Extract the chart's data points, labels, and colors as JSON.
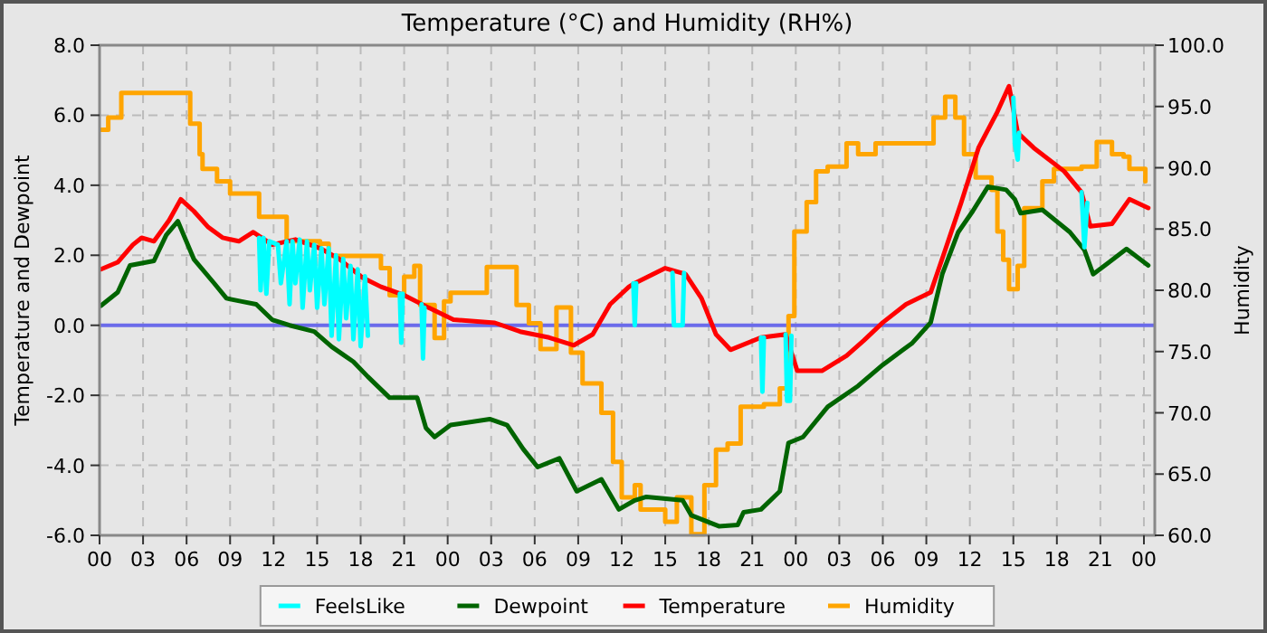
{
  "chart_data": {
    "type": "line",
    "title": "Temperature (°C) and Humidity (RH%)",
    "ylabel": "Temperature and Dewpoint",
    "y2label": "Humidity",
    "xlim": [
      0,
      72.75
    ],
    "xticks": [
      {
        "value": 0,
        "label": "00"
      },
      {
        "value": 3,
        "label": "03"
      },
      {
        "value": 6,
        "label": "06"
      },
      {
        "value": 9,
        "label": "09"
      },
      {
        "value": 12,
        "label": "12"
      },
      {
        "value": 15,
        "label": "15"
      },
      {
        "value": 18,
        "label": "18"
      },
      {
        "value": 21,
        "label": "21"
      },
      {
        "value": 24,
        "label": "00"
      },
      {
        "value": 27,
        "label": "03"
      },
      {
        "value": 30,
        "label": "06"
      },
      {
        "value": 33,
        "label": "09"
      },
      {
        "value": 36,
        "label": "12"
      },
      {
        "value": 39,
        "label": "15"
      },
      {
        "value": 42,
        "label": "18"
      },
      {
        "value": 45,
        "label": "21"
      },
      {
        "value": 48,
        "label": "00"
      },
      {
        "value": 51,
        "label": "03"
      },
      {
        "value": 54,
        "label": "06"
      },
      {
        "value": 57,
        "label": "09"
      },
      {
        "value": 60,
        "label": "12"
      },
      {
        "value": 63,
        "label": "15"
      },
      {
        "value": 66,
        "label": "18"
      },
      {
        "value": 69,
        "label": "21"
      },
      {
        "value": 72,
        "label": "00"
      }
    ],
    "ylim": [
      -6,
      8
    ],
    "yticks": [
      {
        "value": -6,
        "label": "-6.0"
      },
      {
        "value": -4,
        "label": "-4.0"
      },
      {
        "value": -2,
        "label": "-2.0"
      },
      {
        "value": 0,
        "label": "0.0"
      },
      {
        "value": 2,
        "label": "2.0"
      },
      {
        "value": 4,
        "label": "4.0"
      },
      {
        "value": 6,
        "label": "6.0"
      },
      {
        "value": 8,
        "label": "8.0"
      }
    ],
    "y2lim": [
      60,
      100
    ],
    "y2ticks": [
      {
        "value": 60,
        "label": "60.0"
      },
      {
        "value": 65,
        "label": "65.0"
      },
      {
        "value": 70,
        "label": "70.0"
      },
      {
        "value": 75,
        "label": "75.0"
      },
      {
        "value": 80,
        "label": "80.0"
      },
      {
        "value": 85,
        "label": "85.0"
      },
      {
        "value": 90,
        "label": "90.0"
      },
      {
        "value": 95,
        "label": "95.0"
      },
      {
        "value": 100,
        "label": "100.0"
      }
    ],
    "grid": true,
    "legend": "bottom",
    "marker": "none",
    "line_style": "solid",
    "ref_lines": [
      {
        "axis": "y",
        "value": 0,
        "color": "#6b6bea"
      }
    ],
    "series": [
      {
        "name": "FeelsLike",
        "color": "#00ffff",
        "type": "line",
        "x": [
          11.0,
          11.1,
          11.3,
          11.5,
          11.7,
          12.3,
          12.5,
          12.9,
          13.1,
          13.3,
          13.5,
          13.8,
          14.0,
          14.3,
          14.5,
          14.8,
          15.0,
          15.3,
          15.5,
          15.8,
          16.0,
          16.3,
          16.5,
          16.8,
          17.0,
          17.3,
          17.5,
          17.8,
          18.0,
          18.3,
          18.5,
          19.5,
          20.7,
          20.8,
          20.9,
          21.5,
          22.2,
          22.3,
          22.4,
          30,
          36.8,
          36.9,
          37.0,
          38,
          39.5,
          39.6,
          40.2,
          40.3,
          44,
          45.6,
          45.7,
          45.8,
          46.5,
          47.3,
          47.4,
          47.6,
          47.7,
          55,
          63.0,
          63.1,
          63.3,
          63.4,
          66,
          67.7,
          67.9,
          68.1
        ],
        "values": [
          2.5,
          1.0,
          2.5,
          0.9,
          2.4,
          2.3,
          1.2,
          2.4,
          0.6,
          2.4,
          1.2,
          2.45,
          0.5,
          2.4,
          1.0,
          2.3,
          0.5,
          2.2,
          0.6,
          2.2,
          -0.3,
          2.0,
          -0.4,
          1.9,
          0.2,
          1.7,
          -0.4,
          1.6,
          -0.6,
          1.4,
          -0.3,
          null,
          0.9,
          -0.5,
          0.9,
          null,
          0.6,
          -0.95,
          0.5,
          null,
          1.2,
          0.0,
          1.2,
          null,
          1.5,
          0.0,
          0.0,
          1.5,
          null,
          -0.35,
          -1.9,
          -0.35,
          null,
          -0.26,
          -2.16,
          -2.16,
          -0.3,
          null,
          6.5,
          5.2,
          4.73,
          5.5,
          null,
          3.8,
          2.23,
          3.5
        ]
      },
      {
        "name": "Dewpoint",
        "color": "#006400",
        "type": "line",
        "x": [
          0.1,
          1.25,
          2.1,
          3.75,
          4.6,
          5.4,
          6.5,
          7.9,
          8.75,
          9.8,
          10.8,
          11.9,
          13.1,
          14.8,
          16,
          16.9,
          17.5,
          18.5,
          20,
          21.9,
          22.5,
          23.1,
          24.2,
          26.9,
          28.1,
          29.2,
          30.2,
          31.7,
          32.9,
          34.6,
          35.8,
          36.9,
          37.7,
          40.2,
          40.8,
          42.7,
          44,
          44.4,
          45.6,
          46.9,
          47.5,
          48.5,
          50.2,
          52.3,
          54,
          55.4,
          56,
          57.3,
          58.1,
          59.2,
          60.2,
          61.25,
          62.5,
          63.1,
          63.5,
          65,
          66.9,
          67.9,
          68.5,
          69.6,
          70.8,
          72.3
        ],
        "values": [
          0.56,
          0.94,
          1.71,
          1.84,
          2.58,
          2.97,
          1.89,
          1.2,
          0.77,
          0.68,
          0.6,
          0.16,
          0,
          -0.18,
          -0.61,
          -0.87,
          -1.04,
          -1.47,
          -2.07,
          -2.07,
          -2.93,
          -3.19,
          -2.85,
          -2.68,
          -2.85,
          -3.53,
          -4.05,
          -3.8,
          -4.74,
          -4.4,
          -5.26,
          -5.0,
          -4.9,
          -5.0,
          -5.43,
          -5.74,
          -5.7,
          -5.34,
          -5.26,
          -4.74,
          -3.36,
          -3.19,
          -2.33,
          -1.73,
          -1.13,
          -0.7,
          -0.52,
          0.08,
          1.46,
          2.66,
          3.26,
          3.96,
          3.87,
          3.6,
          3.2,
          3.3,
          2.66,
          2.15,
          1.46,
          1.8,
          2.18,
          1.71
        ]
      },
      {
        "name": "Temperature",
        "color": "#ff0000",
        "type": "line",
        "x": [
          0.1,
          1.25,
          2.3,
          2.9,
          3.75,
          4.8,
          5.6,
          6.5,
          7.5,
          8.5,
          9.6,
          10.6,
          11.9,
          13.5,
          15.2,
          16.5,
          18.1,
          19.4,
          21,
          22.7,
          24.4,
          27.25,
          29,
          31,
          32.7,
          34,
          35.2,
          36.5,
          36.9,
          39,
          40.4,
          41.5,
          42.5,
          43.5,
          45.6,
          47.3,
          48.1,
          49.8,
          51.5,
          52.7,
          54,
          55.6,
          57.3,
          58.3,
          59.4,
          60.6,
          61.9,
          62.7,
          63.3,
          64.4,
          66.5,
          67.7,
          68.3,
          69.8,
          71,
          72.3
        ],
        "values": [
          1.6,
          1.8,
          2.3,
          2.5,
          2.4,
          3.0,
          3.6,
          3.26,
          2.8,
          2.5,
          2.4,
          2.66,
          2.3,
          2.45,
          2.2,
          1.9,
          1.37,
          1.1,
          0.86,
          0.5,
          0.16,
          0.07,
          -0.18,
          -0.35,
          -0.57,
          -0.26,
          0.6,
          1.1,
          1.2,
          1.63,
          1.46,
          0.77,
          -0.26,
          -0.7,
          -0.35,
          -0.26,
          -1.3,
          -1.3,
          -0.87,
          -0.43,
          0.08,
          0.6,
          0.94,
          2.15,
          3.5,
          5.07,
          6.1,
          6.83,
          5.5,
          5.07,
          4.4,
          3.8,
          2.83,
          2.9,
          3.6,
          3.35
        ]
      },
      {
        "name": "Humidity",
        "color": "#ffa500",
        "type": "step",
        "axis": "y2",
        "x": [
          0.1,
          0.6,
          1.5,
          5.6,
          6.25,
          6.9,
          7.1,
          8.1,
          9,
          10.4,
          11,
          11.9,
          12.9,
          15.2,
          15.8,
          18.1,
          19.4,
          20,
          21,
          21.7,
          22.1,
          23.1,
          23.75,
          24.2,
          25.8,
          26.7,
          27.9,
          28.75,
          29.6,
          30.4,
          31.5,
          32.5,
          33.3,
          34.6,
          35.4,
          36,
          36.9,
          37.3,
          39,
          39.8,
          40.8,
          41.7,
          42.5,
          43.3,
          44.2,
          45.8,
          46.9,
          47.5,
          47.9,
          48.75,
          49.4,
          50.2,
          51.5,
          52.3,
          53.5,
          56.7,
          57.5,
          58.3,
          59,
          59.6,
          60.4,
          61.5,
          61.9,
          62.3,
          62.7,
          63.3,
          63.75,
          65,
          65.8,
          67.7,
          68.75,
          69.8,
          70.6,
          71,
          72.1
        ],
        "values": [
          93.1,
          94.1,
          96.1,
          96.1,
          93.6,
          91.1,
          89.9,
          88.9,
          87.9,
          87.9,
          86.0,
          86.0,
          84.0,
          83.8,
          82.8,
          82.8,
          81.8,
          79.6,
          81.1,
          82.0,
          78.8,
          76.1,
          79.1,
          79.8,
          79.8,
          81.9,
          81.9,
          78.8,
          77.3,
          75.2,
          78.6,
          74.9,
          72.4,
          70.0,
          66.0,
          63.1,
          64.1,
          62.1,
          61.1,
          63.1,
          60.1,
          64.1,
          67.0,
          67.5,
          70.5,
          70.7,
          72.0,
          77.9,
          84.8,
          87.2,
          89.7,
          90.1,
          92.0,
          91.1,
          92.0,
          92.0,
          94.1,
          95.8,
          94.1,
          91.1,
          89.2,
          88.2,
          84.8,
          82.5,
          80.1,
          82.0,
          86.7,
          88.9,
          89.9,
          90.1,
          92.1,
          91.1,
          90.9,
          89.9,
          88.9
        ]
      }
    ]
  }
}
